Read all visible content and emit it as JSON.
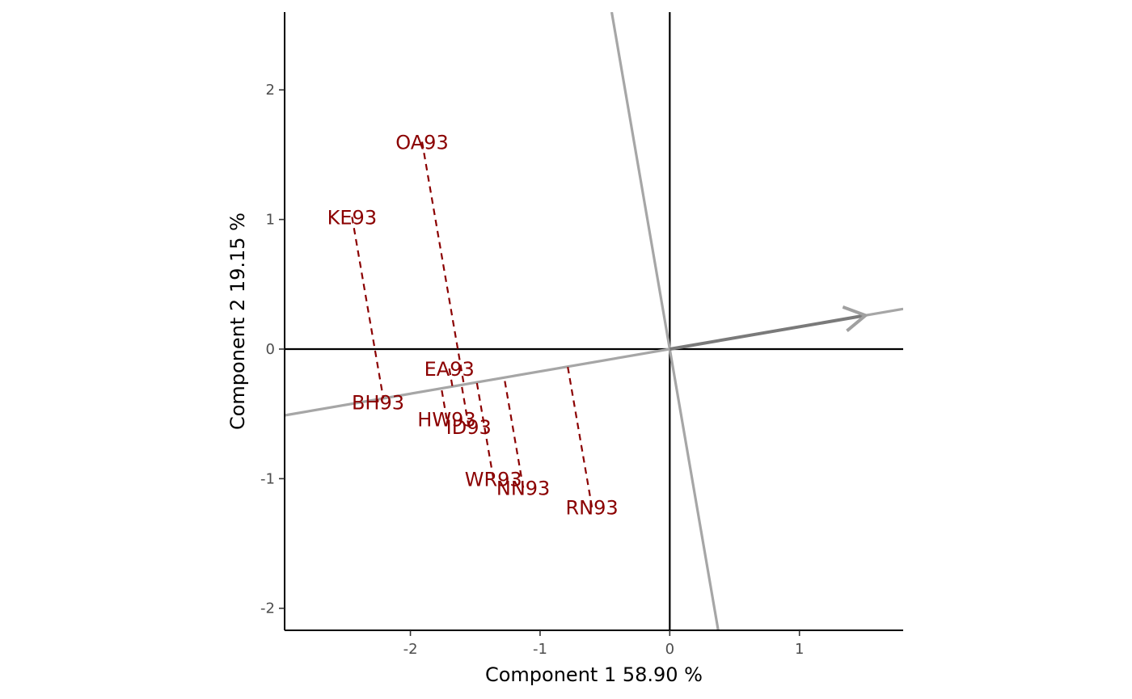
{
  "chart_data": {
    "type": "scatter",
    "title": "",
    "xlabel": "Component 1 58.90 %",
    "ylabel": "Component 2 19.15 %",
    "xlim": [
      -2.97,
      1.8
    ],
    "ylim": [
      -2.17,
      2.6
    ],
    "grid": false,
    "x_ticks": [
      -2,
      -1,
      0,
      1
    ],
    "y_ticks": [
      -2,
      -1,
      0,
      1,
      2
    ],
    "x_tick_labels": [
      "-2",
      "-1",
      "0",
      "1"
    ],
    "y_tick_labels": [
      "-2",
      "-1",
      "0",
      "1",
      "2"
    ],
    "label_color": "#8b0000",
    "line_color": "#a6a6a6",
    "arrow_color": "#7a7a7a",
    "axis_color": "#000000",
    "tester_vector": {
      "x": 1.51,
      "y": 0.26
    },
    "points": [
      {
        "label": "OA93",
        "x": -1.91,
        "y": 1.6
      },
      {
        "label": "KE93",
        "x": -2.45,
        "y": 1.02
      },
      {
        "label": "EA93",
        "x": -1.7,
        "y": -0.15
      },
      {
        "label": "BH93",
        "x": -2.25,
        "y": -0.41
      },
      {
        "label": "HW93",
        "x": -1.72,
        "y": -0.54
      },
      {
        "label": "ID93",
        "x": -1.55,
        "y": -0.6
      },
      {
        "label": "WR93",
        "x": -1.36,
        "y": -1.0
      },
      {
        "label": "NN93",
        "x": -1.13,
        "y": -1.07
      },
      {
        "label": "RN93",
        "x": -0.6,
        "y": -1.22
      }
    ]
  }
}
